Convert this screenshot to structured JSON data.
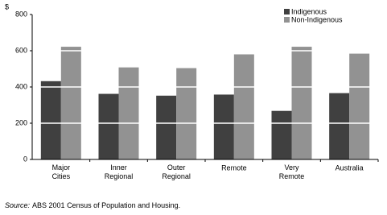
{
  "chart_data": {
    "type": "bar",
    "y_label": "$",
    "categories": [
      "Major Cities",
      "Inner Regional",
      "Outer Regional",
      "Remote",
      "Very Remote",
      "Australia"
    ],
    "series": [
      {
        "name": "Indigenous",
        "color": "#404040",
        "values": [
          432,
          362,
          352,
          358,
          268,
          366
        ]
      },
      {
        "name": "Non-Indigenous",
        "color": "#929292",
        "values": [
          622,
          508,
          504,
          580,
          622,
          584
        ]
      }
    ],
    "ylim": [
      0,
      800
    ],
    "yticks": [
      0,
      200,
      400,
      600,
      800
    ],
    "grid": true,
    "legend": "top-right",
    "source_label": "Source:",
    "source": "ABS 2001 Census of Population and Housing."
  }
}
